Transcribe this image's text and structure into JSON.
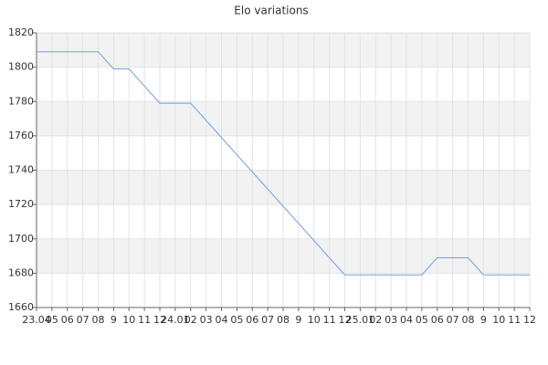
{
  "chart_data": {
    "type": "line",
    "title": "Elo variations",
    "categories": [
      "23.04",
      "05",
      "06",
      "07",
      "08",
      "9",
      "10",
      "11",
      "12",
      "24.01",
      "02",
      "03",
      "04",
      "05",
      "06",
      "07",
      "08",
      "9",
      "10",
      "11",
      "12",
      "25.01",
      "02",
      "03",
      "04",
      "05",
      "06",
      "07",
      "08",
      "9",
      "10",
      "11",
      "12"
    ],
    "values": [
      1809,
      1809,
      1809,
      1809,
      1809,
      1799,
      1799,
      1789,
      1779,
      1779,
      1779,
      1769,
      1759,
      1749,
      1739,
      1729,
      1719,
      1709,
      1699,
      1689,
      1679,
      1679,
      1679,
      1679,
      1679,
      1679,
      1689,
      1689,
      1689,
      1679,
      1679,
      1679,
      1679
    ],
    "color": "#6f9fe0",
    "ylim": [
      1660,
      1820
    ],
    "yticks": [
      1660,
      1680,
      1700,
      1720,
      1740,
      1760,
      1780,
      1800,
      1820
    ],
    "grid": true,
    "alternate_bands": true
  }
}
